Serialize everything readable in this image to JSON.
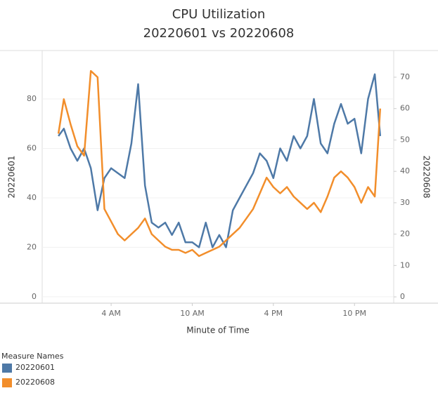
{
  "chart_data": {
    "type": "line",
    "title": "CPU Utilization",
    "subtitle": "20220601 vs 20220608",
    "xlabel": "Minute of Time",
    "ylabel": "20220601",
    "y2label": "20220608",
    "legend_title": "Measure Names",
    "x": [
      0.1,
      0.5,
      1,
      1.5,
      2,
      2.5,
      3,
      3.5,
      4,
      4.5,
      5,
      5.5,
      6,
      6.5,
      7,
      7.5,
      8,
      8.5,
      9,
      9.5,
      10,
      10.5,
      11,
      11.5,
      12,
      12.5,
      13,
      13.5,
      14,
      14.5,
      15,
      15.5,
      16,
      16.5,
      17,
      17.5,
      18,
      18.5,
      19,
      19.5,
      20,
      20.5,
      21,
      21.5,
      22,
      22.5,
      23,
      23.5,
      23.9
    ],
    "xlim": [
      -1.1,
      24.9
    ],
    "xticks": [
      {
        "value": 4,
        "label": "4 AM"
      },
      {
        "value": 10,
        "label": "10 AM"
      },
      {
        "value": 16,
        "label": "4 PM"
      },
      {
        "value": 22,
        "label": "10 PM"
      }
    ],
    "ylim": [
      -2.6,
      99.6
    ],
    "yticks": [
      0,
      20,
      40,
      60,
      80
    ],
    "y2lim": [
      -2,
      78.5
    ],
    "y2ticks": [
      0,
      10,
      20,
      30,
      40,
      50,
      60,
      70
    ],
    "grid": true,
    "series": [
      {
        "name": "20220601",
        "color": "#4e79a7",
        "values": [
          65,
          68,
          60,
          55,
          60,
          52,
          35,
          48,
          52,
          50,
          48,
          62,
          86,
          45,
          30,
          28,
          30,
          25,
          30,
          22,
          22,
          20,
          30,
          20,
          25,
          20,
          35,
          40,
          45,
          50,
          58,
          55,
          48,
          60,
          55,
          65,
          60,
          65,
          80,
          62,
          58,
          70,
          78,
          70,
          72,
          58,
          80,
          90,
          65
        ]
      },
      {
        "name": "20220608",
        "color": "#f28e2b",
        "axis": "y2",
        "values": [
          52,
          63,
          55,
          48,
          45,
          72,
          70,
          28,
          24,
          20,
          18,
          20,
          22,
          25,
          20,
          18,
          16,
          15,
          15,
          14,
          15,
          13,
          14,
          15,
          16,
          18,
          20,
          22,
          25,
          28,
          33,
          38,
          35,
          33,
          35,
          32,
          30,
          28,
          30,
          27,
          32,
          38,
          40,
          38,
          35,
          30,
          35,
          32,
          60
        ]
      }
    ]
  }
}
